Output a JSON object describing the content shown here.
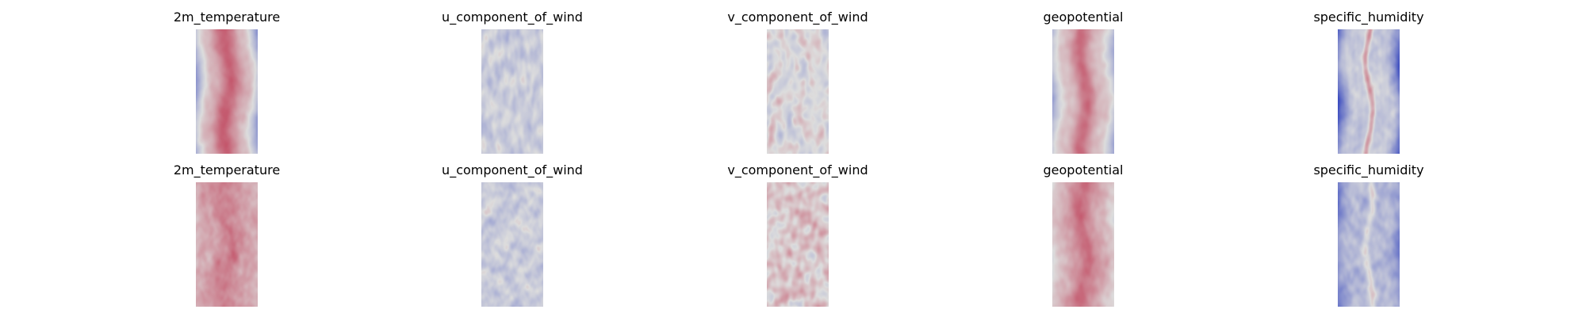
{
  "chart_data": [
    {
      "type": "heatmap",
      "title": "2m_temperature",
      "row": 1,
      "colormap": "coolwarm",
      "pattern": "warm central band, cool edges",
      "colors": {
        "low": "#3b4cc0",
        "mid": "#dddddd",
        "high": "#b40426"
      }
    },
    {
      "type": "heatmap",
      "title": "u_component_of_wind",
      "row": 1,
      "colormap": "coolwarm",
      "pattern": "mostly cool-neutral with warm streaks on left side",
      "colors": {
        "low": "#3b4cc0",
        "mid": "#dddddd",
        "high": "#b40426"
      }
    },
    {
      "type": "heatmap",
      "title": "v_component_of_wind",
      "row": 1,
      "colormap": "coolwarm",
      "pattern": "mixed turbulent warm and cool patches",
      "colors": {
        "low": "#3b4cc0",
        "mid": "#dddddd",
        "high": "#b40426"
      }
    },
    {
      "type": "heatmap",
      "title": "geopotential",
      "row": 1,
      "colormap": "coolwarm",
      "pattern": "warm central band, cool edges",
      "colors": {
        "low": "#3b4cc0",
        "mid": "#dddddd",
        "high": "#b40426"
      }
    },
    {
      "type": "heatmap",
      "title": "specific_humidity",
      "row": 1,
      "colormap": "coolwarm",
      "pattern": "narrow warm central streak, strongly cool edges",
      "colors": {
        "low": "#3b4cc0",
        "mid": "#dddddd",
        "high": "#b40426"
      }
    },
    {
      "type": "heatmap",
      "title": "2m_temperature",
      "row": 2,
      "colormap": "coolwarm",
      "pattern": "mostly warm with mottled texture",
      "colors": {
        "low": "#3b4cc0",
        "mid": "#dddddd",
        "high": "#b40426"
      }
    },
    {
      "type": "heatmap",
      "title": "u_component_of_wind",
      "row": 2,
      "colormap": "coolwarm",
      "pattern": "mostly cool-neutral with warm streaks",
      "colors": {
        "low": "#3b4cc0",
        "mid": "#dddddd",
        "high": "#b40426"
      }
    },
    {
      "type": "heatmap",
      "title": "v_component_of_wind",
      "row": 2,
      "colormap": "coolwarm",
      "pattern": "mixed warm and cool patches, warmer overall",
      "colors": {
        "low": "#3b4cc0",
        "mid": "#dddddd",
        "high": "#b40426"
      }
    },
    {
      "type": "heatmap",
      "title": "geopotential",
      "row": 2,
      "colormap": "coolwarm",
      "pattern": "warm central band with mottled texture",
      "colors": {
        "low": "#3b4cc0",
        "mid": "#dddddd",
        "high": "#b40426"
      }
    },
    {
      "type": "heatmap",
      "title": "specific_humidity",
      "row": 2,
      "colormap": "coolwarm",
      "pattern": "cool with scattered warm central streaks",
      "colors": {
        "low": "#3b4cc0",
        "mid": "#dddddd",
        "high": "#b40426"
      }
    }
  ]
}
